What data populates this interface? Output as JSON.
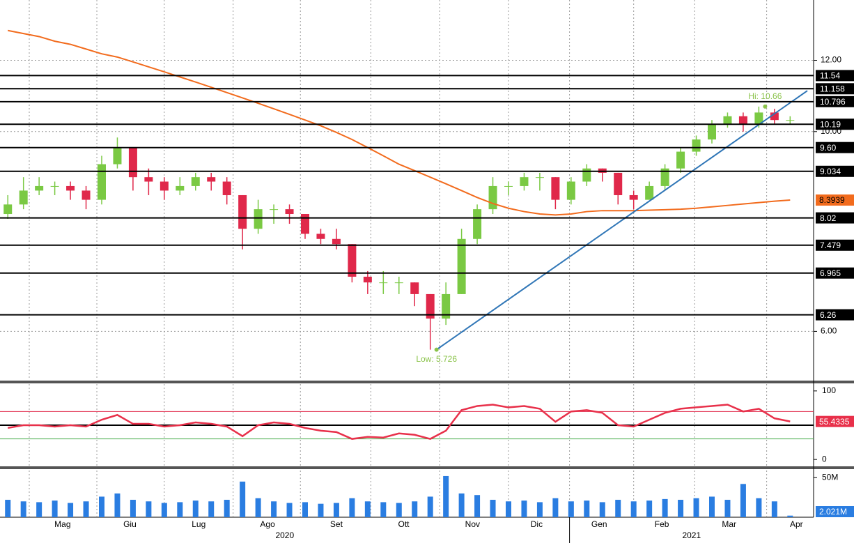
{
  "chart_data": [
    {
      "type": "candlestick",
      "log_scale": true,
      "grid": true,
      "xlim": [
        0,
        52
      ],
      "ylim": [
        5.3,
        14.0
      ],
      "yticks": [
        {
          "value": 12,
          "label": "12.00"
        },
        {
          "value": 10,
          "label": "10.00"
        },
        {
          "value": 6,
          "label": "6.00"
        }
      ],
      "up_color": "#7ac943",
      "down_color": "#e0284a",
      "open": [
        8.1,
        8.3,
        8.6,
        8.7,
        8.7,
        8.6,
        8.4,
        9.2,
        9.6,
        8.9,
        8.8,
        8.6,
        8.7,
        8.9,
        8.8,
        8.5,
        7.8,
        8.2,
        8.2,
        8.1,
        7.7,
        7.6,
        7.5,
        6.9,
        6.8,
        6.8,
        6.8,
        6.6,
        6.2,
        6.6,
        7.6,
        8.2,
        8.7,
        8.7,
        8.9,
        8.9,
        8.4,
        8.8,
        9.1,
        9.0,
        8.5,
        8.4,
        8.7,
        9.1,
        9.5,
        9.8,
        10.2,
        10.4,
        10.2,
        10.5,
        10.3
      ],
      "high": [
        8.5,
        8.9,
        8.9,
        8.8,
        8.8,
        8.7,
        9.4,
        9.85,
        9.6,
        9.1,
        8.9,
        8.9,
        9.0,
        9.0,
        8.9,
        8.5,
        8.4,
        8.3,
        8.3,
        8.1,
        7.8,
        7.8,
        7.5,
        7.0,
        7.0,
        6.9,
        6.8,
        6.6,
        6.8,
        7.8,
        8.3,
        8.9,
        8.8,
        9.0,
        9.0,
        8.9,
        8.9,
        9.2,
        9.1,
        9.0,
        8.6,
        8.8,
        9.2,
        9.6,
        9.9,
        10.3,
        10.5,
        10.5,
        10.66,
        10.6,
        10.4
      ],
      "low": [
        8.0,
        8.2,
        8.5,
        8.5,
        8.4,
        8.2,
        8.3,
        9.1,
        8.6,
        8.5,
        8.4,
        8.5,
        8.6,
        8.6,
        8.3,
        7.4,
        7.7,
        7.9,
        7.9,
        7.6,
        7.5,
        7.4,
        6.8,
        6.6,
        6.6,
        6.6,
        6.4,
        5.726,
        6.1,
        6.6,
        7.5,
        8.1,
        8.5,
        8.6,
        8.6,
        8.2,
        8.3,
        8.7,
        8.8,
        8.3,
        8.2,
        8.4,
        8.6,
        9.0,
        9.4,
        9.7,
        10.1,
        10.0,
        10.1,
        10.2,
        10.2
      ],
      "close": [
        8.3,
        8.6,
        8.7,
        8.7,
        8.6,
        8.4,
        9.2,
        9.6,
        8.9,
        8.8,
        8.6,
        8.7,
        8.9,
        8.8,
        8.5,
        7.8,
        8.2,
        8.2,
        8.1,
        7.7,
        7.6,
        7.5,
        6.9,
        6.8,
        6.8,
        6.8,
        6.6,
        6.2,
        6.6,
        7.6,
        8.2,
        8.7,
        8.7,
        8.9,
        8.9,
        8.4,
        8.8,
        9.1,
        9.0,
        8.5,
        8.4,
        8.7,
        9.1,
        9.5,
        9.8,
        10.2,
        10.4,
        10.2,
        10.5,
        10.3,
        10.3
      ],
      "levels": [
        11.54,
        11.158,
        10.796,
        10.19,
        {
          "value": 9.6,
          "label": "9.60"
        },
        9.034,
        8.02,
        7.479,
        6.965,
        6.26
      ],
      "series": [
        {
          "color": "#f26b1d",
          "values": [
            12.95,
            12.85,
            12.75,
            12.6,
            12.5,
            12.35,
            12.2,
            12.1,
            11.95,
            11.8,
            11.65,
            11.5,
            11.35,
            11.2,
            11.05,
            10.9,
            10.75,
            10.6,
            10.45,
            10.3,
            10.15,
            9.98,
            9.8,
            9.6,
            9.4,
            9.2,
            9.05,
            8.9,
            8.75,
            8.6,
            8.45,
            8.32,
            8.22,
            8.15,
            8.1,
            8.08,
            8.1,
            8.15,
            8.17,
            8.17,
            8.17,
            8.18,
            8.19,
            8.2,
            8.22,
            8.25,
            8.28,
            8.31,
            8.34,
            8.37,
            8.3939
          ]
        }
      ],
      "trendline": {
        "color": "#2e75b6",
        "x": [
          27.9,
          51.6
        ],
        "y": [
          5.726,
          11.1
        ]
      },
      "annotations": [
        {
          "label": "Hi: 10.66",
          "x": 48.9,
          "y": 10.66
        },
        {
          "label": "Low: 5.726",
          "x": 27.9,
          "y": 5.726
        }
      ]
    },
    {
      "type": "line",
      "xlim": [
        0,
        52
      ],
      "ylim": [
        -9,
        110
      ],
      "yticks": [
        0,
        100
      ],
      "ref_lines": [
        {
          "value": 70,
          "color": "#e0284a"
        },
        {
          "value": 50,
          "color": "#000000"
        },
        {
          "value": 30,
          "color": "#4caf50"
        }
      ],
      "series": [
        {
          "color": "#e8304a",
          "values": [
            46,
            50,
            50,
            48,
            50,
            48,
            58,
            65,
            52,
            52,
            48,
            50,
            54,
            52,
            48,
            34,
            50,
            54,
            52,
            46,
            42,
            40,
            30,
            33,
            32,
            38,
            36,
            30,
            42,
            72,
            78,
            80,
            76,
            78,
            74,
            55,
            70,
            72,
            68,
            50,
            48,
            58,
            68,
            74,
            76,
            78,
            80,
            70,
            74,
            60,
            55.4335
          ]
        }
      ]
    },
    {
      "type": "bar",
      "xlim": [
        0,
        52
      ],
      "ylim": [
        0,
        59
      ],
      "yticks": [
        {
          "value": 50,
          "label": "50M"
        }
      ],
      "color": "#2a7de1",
      "values": [
        22,
        20,
        19,
        21,
        18,
        20,
        26,
        30,
        22,
        20,
        18,
        19,
        21,
        20,
        22,
        45,
        24,
        20,
        18,
        19,
        17,
        18,
        24,
        20,
        19,
        18,
        20,
        26,
        52,
        30,
        28,
        22,
        20,
        21,
        19,
        24,
        20,
        21,
        19,
        22,
        20,
        21,
        23,
        22,
        24,
        26,
        22,
        42,
        24,
        20,
        2.021
      ],
      "value_labels": [
        null,
        null,
        null,
        null,
        null,
        null,
        null,
        null,
        null,
        null,
        null,
        null,
        null,
        null,
        null,
        null,
        null,
        null,
        null,
        null,
        null,
        null,
        null,
        null,
        null,
        null,
        null,
        null,
        null,
        null,
        null,
        null,
        null,
        null,
        null,
        null,
        null,
        null,
        null,
        null,
        null,
        null,
        null,
        null,
        null,
        null,
        null,
        null,
        null,
        null,
        "2.021M"
      ],
      "xgrid": [
        1.87,
        6.19,
        10.5,
        14.9,
        19.2,
        23.7,
        28.1,
        32.5,
        36.4,
        40.5,
        44.4,
        49.0
      ],
      "xticks": [
        {
          "value": 4.0,
          "label": "Mag"
        },
        {
          "value": 8.3,
          "label": "Giu"
        },
        {
          "value": 12.7,
          "label": "Lug"
        },
        {
          "value": 17.1,
          "label": "Ago"
        },
        {
          "value": 21.5,
          "label": "Set"
        },
        {
          "value": 25.8,
          "label": "Ott"
        },
        {
          "value": 30.2,
          "label": "Nov"
        },
        {
          "value": 34.3,
          "label": "Dic"
        },
        {
          "value": 38.3,
          "label": "Gen"
        },
        {
          "value": 42.3,
          "label": "Feb"
        },
        {
          "value": 46.6,
          "label": "Mar"
        },
        {
          "value": 50.9,
          "label": "Apr"
        }
      ],
      "years": [
        {
          "value": 18.2,
          "label": "2020"
        },
        {
          "value": 44.2,
          "label": "2021"
        }
      ]
    }
  ]
}
